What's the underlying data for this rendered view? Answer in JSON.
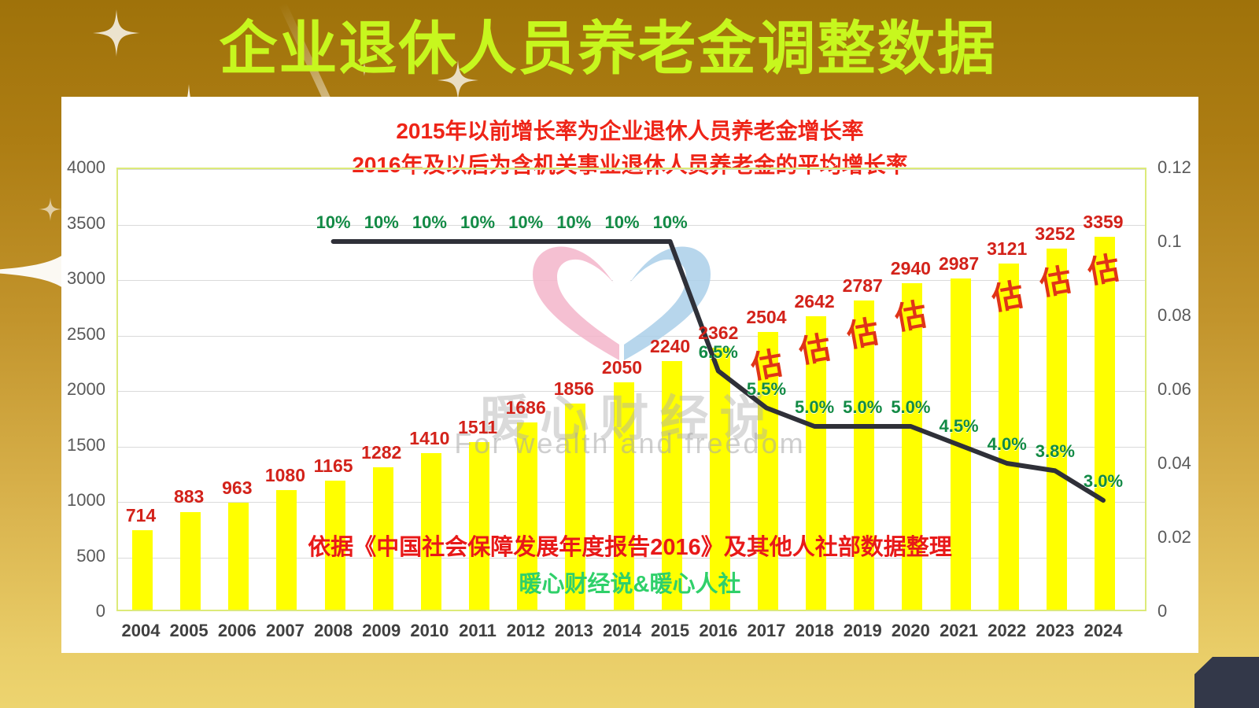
{
  "header": {
    "title": "企业退休人员养老金调整数据"
  },
  "annotations": {
    "subtitle_line1": "2015年以前增长率为企业退休人员养老金增长率",
    "subtitle_line2": "2016年及以后为含机关事业退休人员养老金的平均增长率",
    "source_note": "依据《中国社会保障发展年度报告2016》及其他人社部数据整理",
    "credit": "暖心财经说&暖心人社",
    "estimate_mark": "估"
  },
  "watermark": {
    "cn": "暖心财经说",
    "en": "For wealth and freedom"
  },
  "colors": {
    "bar": "#FFFF00",
    "bar_label": "#D3221A",
    "estimate_label": "#E03418",
    "rate_label": "#128A45",
    "line": "#2F3038",
    "title": "#C7F71E",
    "subtitle": "#EE2417",
    "source_note": "#E81919",
    "credit": "#2FD06A",
    "gridline": "#DADADA",
    "plot_border": "#DCEA79",
    "axis_text": "#595959",
    "background_top": "#9F720A",
    "background_bottom": "#EDD46F",
    "corner_block": "#333849",
    "watermark_pink": "#F3B5CA",
    "watermark_blue": "#AACFE9"
  },
  "chart_data": {
    "type": "combo-bar-line",
    "title": "企业退休人员养老金调整数据",
    "categories": [
      "2004",
      "2005",
      "2006",
      "2007",
      "2008",
      "2009",
      "2010",
      "2011",
      "2012",
      "2013",
      "2014",
      "2015",
      "2016",
      "2017",
      "2018",
      "2019",
      "2020",
      "2021",
      "2022",
      "2023",
      "2024"
    ],
    "series": [
      {
        "name": "养老金(元)",
        "type": "bar",
        "axis": "left",
        "color": "#FFFF00",
        "values": [
          714,
          883,
          963,
          1080,
          1165,
          1282,
          1410,
          1511,
          1686,
          1856,
          2050,
          2240,
          2362,
          2504,
          2642,
          2787,
          2940,
          2987,
          3121,
          3252,
          3359
        ]
      },
      {
        "name": "增长率",
        "type": "line",
        "axis": "right",
        "color": "#2F3038",
        "values": [
          null,
          null,
          null,
          null,
          0.1,
          0.1,
          0.1,
          0.1,
          0.1,
          0.1,
          0.1,
          0.1,
          0.065,
          0.055,
          0.05,
          0.05,
          0.05,
          0.045,
          0.04,
          0.038,
          0.03
        ]
      }
    ],
    "rate_labels": [
      "",
      "",
      "",
      "",
      "10%",
      "10%",
      "10%",
      "10%",
      "10%",
      "10%",
      "10%",
      "10%",
      "6.5%",
      "5.5%",
      "5.0%",
      "5.0%",
      "5.0%",
      "4.5%",
      "4.0%",
      "3.8%",
      "3.0%"
    ],
    "estimated": [
      false,
      false,
      false,
      false,
      false,
      false,
      false,
      false,
      false,
      false,
      false,
      false,
      false,
      true,
      true,
      true,
      true,
      false,
      true,
      true,
      true
    ],
    "left_axis": {
      "ticks": [
        "0",
        "500",
        "1000",
        "1500",
        "2000",
        "2500",
        "3000",
        "3500",
        "4000"
      ],
      "max": 4000
    },
    "right_axis": {
      "ticks": [
        "0",
        "0.02",
        "0.04",
        "0.06",
        "0.08",
        "0.1",
        "0.12"
      ],
      "max": 0.12
    },
    "grid": true,
    "legend": "none"
  }
}
